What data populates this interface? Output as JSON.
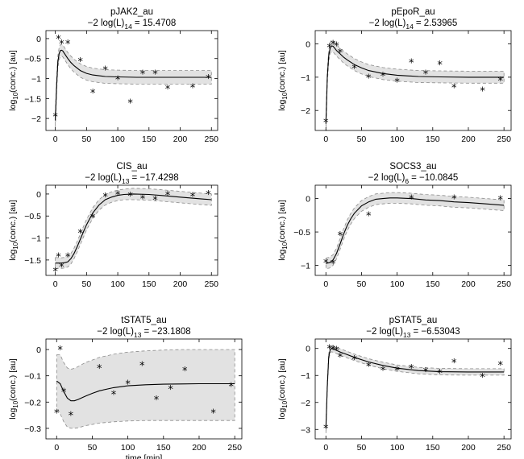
{
  "colors": {
    "band": "#e2e2e2",
    "band_edge": "#8c8c8c",
    "line": "#000000",
    "axes": "#000000"
  },
  "chart_data": [
    {
      "type": "line",
      "title": "pJAK2_au",
      "subtitle": "−2 log(L)",
      "subscript": "14",
      "stat": "= 15.4708",
      "xlabel": "",
      "ylabel": "log10(conc.) [au]",
      "xlim": [
        -15,
        260
      ],
      "ylim": [
        -2.3,
        0.2
      ],
      "xticks": [
        0,
        50,
        100,
        150,
        200,
        250
      ],
      "yticks": [
        0,
        -0.5,
        -1,
        -1.5,
        -2
      ],
      "ytick_labels": [
        "0",
        "−0.5",
        "−1",
        "−1.5",
        "−2"
      ],
      "fit": {
        "x": [
          0,
          2,
          4,
          6,
          8,
          10,
          12,
          15,
          20,
          25,
          30,
          40,
          50,
          60,
          80,
          100,
          130,
          160,
          200,
          250
        ],
        "y": [
          -2.05,
          -1.2,
          -0.6,
          -0.38,
          -0.3,
          -0.29,
          -0.31,
          -0.38,
          -0.5,
          -0.6,
          -0.68,
          -0.8,
          -0.87,
          -0.91,
          -0.95,
          -0.96,
          -0.97,
          -0.97,
          -0.97,
          -0.97
        ]
      },
      "band_halfwidth": [
        0.18,
        0.18,
        0.16,
        0.15,
        0.15,
        0.15,
        0.15,
        0.15,
        0.15,
        0.16,
        0.16,
        0.17,
        0.17,
        0.17,
        0.17,
        0.17,
        0.17,
        0.17,
        0.17,
        0.17
      ],
      "observations": {
        "x": [
          0,
          5,
          10,
          20,
          40,
          60,
          80,
          100,
          120,
          140,
          160,
          180,
          220,
          245
        ],
        "y": [
          -1.95,
          0,
          -0.12,
          -0.12,
          -0.57,
          -1.35,
          -0.78,
          -1.02,
          -1.6,
          -0.88,
          -0.88,
          -1.25,
          -1.22,
          -0.99
        ]
      }
    },
    {
      "type": "line",
      "title": "pEpoR_au",
      "subtitle": "−2 log(L)",
      "subscript": "14",
      "stat": "= 2.53965",
      "xlabel": "",
      "ylabel": "log10(conc.) [au]",
      "xlim": [
        -15,
        260
      ],
      "ylim": [
        -2.6,
        0.4
      ],
      "xticks": [
        0,
        50,
        100,
        150,
        200,
        250
      ],
      "yticks": [
        0,
        -1,
        -2
      ],
      "ytick_labels": [
        "0",
        "−1",
        "−2"
      ],
      "fit": {
        "x": [
          0,
          2,
          4,
          6,
          8,
          10,
          12,
          15,
          20,
          25,
          30,
          40,
          50,
          60,
          80,
          100,
          130,
          160,
          200,
          250
        ],
        "y": [
          -2.4,
          -1.0,
          -0.35,
          -0.12,
          -0.06,
          -0.07,
          -0.12,
          -0.2,
          -0.3,
          -0.4,
          -0.48,
          -0.62,
          -0.72,
          -0.8,
          -0.89,
          -0.94,
          -0.98,
          -0.99,
          -1.0,
          -1.0
        ]
      },
      "band_halfwidth": [
        0.22,
        0.2,
        0.18,
        0.17,
        0.17,
        0.17,
        0.17,
        0.17,
        0.17,
        0.18,
        0.18,
        0.18,
        0.18,
        0.18,
        0.18,
        0.18,
        0.18,
        0.18,
        0.18,
        0.18
      ],
      "observations": {
        "x": [
          0,
          5,
          10,
          15,
          20,
          40,
          60,
          80,
          100,
          120,
          140,
          160,
          180,
          220,
          245
        ],
        "y": [
          -2.35,
          -0.1,
          0,
          -0.05,
          -0.25,
          -0.72,
          -1.02,
          -0.96,
          -1.14,
          -0.55,
          -0.9,
          -0.62,
          -1.3,
          -1.4,
          -1.1
        ]
      }
    },
    {
      "type": "line",
      "title": "CIS_au",
      "subtitle": "−2 log(L)",
      "subscript": "13",
      "stat": "= −17.4298",
      "xlabel": "",
      "ylabel": "log10(conc.) [au]",
      "xlim": [
        -15,
        260
      ],
      "ylim": [
        -1.85,
        0.2
      ],
      "xticks": [
        0,
        50,
        100,
        150,
        200,
        250
      ],
      "yticks": [
        0,
        -0.5,
        -1,
        -1.5
      ],
      "ytick_labels": [
        "0",
        "−0.5",
        "−1",
        "−1.5"
      ],
      "fit": {
        "x": [
          0,
          5,
          10,
          15,
          20,
          25,
          30,
          35,
          40,
          45,
          50,
          60,
          70,
          80,
          90,
          100,
          110,
          125,
          150,
          175,
          200,
          225,
          250
        ],
        "y": [
          -1.57,
          -1.57,
          -1.57,
          -1.56,
          -1.54,
          -1.47,
          -1.35,
          -1.2,
          -1.03,
          -0.86,
          -0.7,
          -0.43,
          -0.25,
          -0.13,
          -0.07,
          -0.03,
          -0.01,
          0,
          -0.01,
          -0.04,
          -0.07,
          -0.1,
          -0.13
        ]
      },
      "band_halfwidth": [
        0.13,
        0.12,
        0.12,
        0.12,
        0.12,
        0.12,
        0.12,
        0.12,
        0.12,
        0.12,
        0.12,
        0.12,
        0.12,
        0.12,
        0.12,
        0.12,
        0.12,
        0.13,
        0.13,
        0.13,
        0.13,
        0.13,
        0.13
      ],
      "observations": {
        "x": [
          0,
          5,
          10,
          20,
          40,
          60,
          80,
          100,
          120,
          140,
          160,
          180,
          220,
          245
        ],
        "y": [
          -1.75,
          -1.42,
          -1.65,
          -1.42,
          -0.88,
          -0.53,
          -0.06,
          -0.01,
          -0.04,
          -0.1,
          -0.13,
          -0.02,
          -0.05,
          0
        ]
      }
    },
    {
      "type": "line",
      "title": "SOCS3_au",
      "subtitle": "−2 log(L)",
      "subscript": "6",
      "stat": "= −10.0845",
      "xlabel": "",
      "ylabel": "log10(conc.) [au]",
      "xlim": [
        -15,
        260
      ],
      "ylim": [
        -1.15,
        0.2
      ],
      "xticks": [
        0,
        50,
        100,
        150,
        200,
        250
      ],
      "yticks": [
        0,
        -0.5,
        -1
      ],
      "ytick_labels": [
        "0",
        "−0.5",
        "−1"
      ],
      "fit": {
        "x": [
          0,
          5,
          10,
          15,
          20,
          25,
          30,
          35,
          40,
          50,
          60,
          70,
          80,
          90,
          100,
          120,
          140,
          160,
          180,
          200,
          225,
          250
        ],
        "y": [
          -0.97,
          -0.96,
          -0.92,
          -0.82,
          -0.68,
          -0.53,
          -0.4,
          -0.3,
          -0.22,
          -0.11,
          -0.05,
          -0.01,
          0,
          0.01,
          0.01,
          0,
          -0.02,
          -0.03,
          -0.05,
          -0.06,
          -0.08,
          -0.1
        ]
      },
      "band_halfwidth": [
        0.08,
        0.08,
        0.08,
        0.08,
        0.08,
        0.08,
        0.08,
        0.08,
        0.08,
        0.08,
        0.08,
        0.08,
        0.08,
        0.08,
        0.08,
        0.08,
        0.08,
        0.08,
        0.08,
        0.08,
        0.08,
        0.08
      ],
      "observations": {
        "x": [
          0,
          10,
          20,
          60,
          120,
          180,
          245
        ],
        "y": [
          -0.96,
          -0.97,
          -0.55,
          -0.25,
          0,
          0,
          -0.01
        ]
      }
    },
    {
      "type": "line",
      "title": "tSTAT5_au",
      "subtitle": "−2 log(L)",
      "subscript": "13",
      "stat": "= −23.1808",
      "xlabel": "time [min]",
      "ylabel": "log10(conc.) [au]",
      "xlim": [
        -15,
        260
      ],
      "ylim": [
        -0.34,
        0.04
      ],
      "xticks": [
        0,
        50,
        100,
        150,
        200,
        250
      ],
      "yticks": [
        0,
        -0.1,
        -0.2,
        -0.3
      ],
      "ytick_labels": [
        "0",
        "−0.1",
        "−0.2",
        "−0.3"
      ],
      "fit": {
        "x": [
          0,
          5,
          10,
          15,
          20,
          25,
          30,
          40,
          50,
          60,
          80,
          100,
          125,
          150,
          175,
          200,
          225,
          250
        ],
        "y": [
          -0.12,
          -0.13,
          -0.16,
          -0.185,
          -0.195,
          -0.195,
          -0.19,
          -0.178,
          -0.167,
          -0.157,
          -0.145,
          -0.138,
          -0.134,
          -0.132,
          -0.131,
          -0.13,
          -0.13,
          -0.13
        ]
      },
      "band_lower": [
        -0.22,
        -0.245,
        -0.275,
        -0.295,
        -0.3,
        -0.3,
        -0.298,
        -0.29,
        -0.285,
        -0.28,
        -0.275,
        -0.272,
        -0.27,
        -0.27,
        -0.27,
        -0.27,
        -0.27,
        -0.27
      ],
      "band_upper": [
        -0.02,
        -0.02,
        -0.05,
        -0.07,
        -0.075,
        -0.072,
        -0.065,
        -0.05,
        -0.04,
        -0.03,
        -0.018,
        -0.01,
        -0.005,
        -0.002,
        0,
        0,
        0,
        0
      ],
      "observations": {
        "x": [
          0,
          5,
          10,
          20,
          60,
          80,
          100,
          120,
          140,
          160,
          180,
          220,
          245
        ],
        "y": [
          -0.24,
          0,
          -0.16,
          -0.25,
          -0.07,
          -0.17,
          -0.13,
          -0.06,
          -0.19,
          -0.15,
          -0.08,
          -0.24,
          -0.14
        ]
      }
    },
    {
      "type": "line",
      "title": "pSTAT5_au",
      "subtitle": "−2 log(L)",
      "subscript": "13",
      "stat": "= −6.53043",
      "xlabel": "",
      "ylabel": "log10(conc.) [au]",
      "xlim": [
        -15,
        260
      ],
      "ylim": [
        -3.35,
        0.35
      ],
      "xticks": [
        0,
        50,
        100,
        150,
        200,
        250
      ],
      "yticks": [
        0,
        -1,
        -2,
        -3
      ],
      "ytick_labels": [
        "0",
        "−1",
        "−2",
        "−3"
      ],
      "fit": {
        "x": [
          0,
          2,
          4,
          6,
          8,
          10,
          15,
          20,
          30,
          40,
          60,
          80,
          100,
          130,
          160,
          200,
          250
        ],
        "y": [
          -2.95,
          -1.4,
          -0.3,
          -0.05,
          0,
          -0.02,
          -0.07,
          -0.13,
          -0.23,
          -0.33,
          -0.5,
          -0.63,
          -0.73,
          -0.82,
          -0.86,
          -0.87,
          -0.87
        ]
      },
      "band_halfwidth": [
        0.2,
        0.15,
        0.12,
        0.12,
        0.12,
        0.12,
        0.12,
        0.12,
        0.12,
        0.12,
        0.12,
        0.12,
        0.12,
        0.12,
        0.12,
        0.12,
        0.12
      ],
      "observations": {
        "x": [
          0,
          5,
          10,
          15,
          20,
          40,
          60,
          80,
          100,
          120,
          140,
          160,
          180,
          220,
          245
        ],
        "y": [
          -2.95,
          0,
          -0.03,
          -0.05,
          -0.3,
          -0.4,
          -0.65,
          -0.8,
          -0.8,
          -0.72,
          -0.85,
          -0.9,
          -0.52,
          -1.05,
          -0.6
        ]
      }
    }
  ]
}
